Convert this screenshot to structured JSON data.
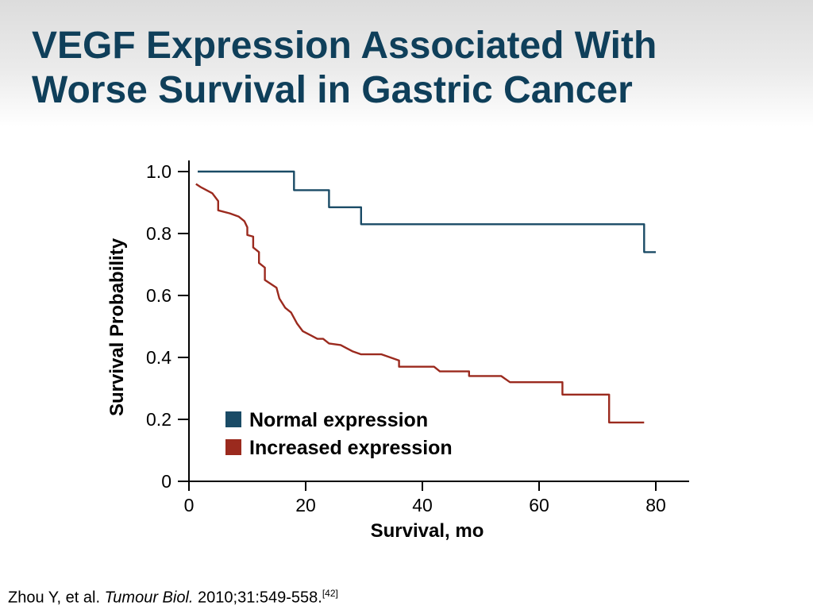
{
  "slide": {
    "title_line1": "VEGF Expression Associated With",
    "title_line2": "Worse Survival in Gastric Cancer"
  },
  "citation": {
    "authors": "Zhou Y, et al.",
    "journal": "Tumour Biol.",
    "details": "2010;31:549-558.",
    "ref": "[42]"
  },
  "colors": {
    "title": "#0f3f5a",
    "normal": "#1a4b66",
    "increased": "#9b2a1e"
  },
  "chart_data": {
    "type": "line",
    "step": true,
    "xlabel": "Survival, mo",
    "ylabel": "Survival Probability",
    "xlim": [
      0,
      85
    ],
    "ylim": [
      0,
      1.0
    ],
    "xticks": [
      0,
      20,
      40,
      60,
      80
    ],
    "yticks": [
      0,
      0.2,
      0.4,
      0.6,
      0.8,
      1.0
    ],
    "xtick_labels": [
      "0",
      "20",
      "40",
      "60",
      "80"
    ],
    "ytick_labels": [
      "0",
      "0.2",
      "0.4",
      "0.6",
      "0.8",
      "1.0"
    ],
    "grid": false,
    "legend_position": "lower-left",
    "series": [
      {
        "name": "Normal expression",
        "color": "#1a4b66",
        "points": [
          [
            1.5,
            1.0
          ],
          [
            18,
            1.0
          ],
          [
            18,
            0.94
          ],
          [
            24,
            0.94
          ],
          [
            24,
            0.885
          ],
          [
            29.5,
            0.885
          ],
          [
            29.5,
            0.83
          ],
          [
            78,
            0.83
          ],
          [
            78,
            0.74
          ],
          [
            80,
            0.74
          ]
        ]
      },
      {
        "name": "Increased expression",
        "color": "#9b2a1e",
        "points": [
          [
            1.2,
            0.96
          ],
          [
            2,
            0.95
          ],
          [
            3,
            0.94
          ],
          [
            4,
            0.93
          ],
          [
            5,
            0.905
          ],
          [
            5,
            0.875
          ],
          [
            7,
            0.865
          ],
          [
            8.5,
            0.855
          ],
          [
            9.5,
            0.84
          ],
          [
            10,
            0.82
          ],
          [
            10,
            0.795
          ],
          [
            11,
            0.79
          ],
          [
            11,
            0.755
          ],
          [
            12,
            0.74
          ],
          [
            12,
            0.705
          ],
          [
            13,
            0.69
          ],
          [
            13,
            0.65
          ],
          [
            15,
            0.625
          ],
          [
            15.5,
            0.59
          ],
          [
            16.5,
            0.56
          ],
          [
            17.5,
            0.545
          ],
          [
            18.5,
            0.51
          ],
          [
            19.5,
            0.485
          ],
          [
            21,
            0.47
          ],
          [
            22,
            0.46
          ],
          [
            23,
            0.46
          ],
          [
            24,
            0.445
          ],
          [
            26,
            0.44
          ],
          [
            27,
            0.43
          ],
          [
            28,
            0.42
          ],
          [
            29.5,
            0.41
          ],
          [
            33,
            0.41
          ],
          [
            34.5,
            0.4
          ],
          [
            36,
            0.39
          ],
          [
            36,
            0.37
          ],
          [
            42,
            0.37
          ],
          [
            43,
            0.355
          ],
          [
            48,
            0.355
          ],
          [
            48,
            0.34
          ],
          [
            53.5,
            0.34
          ],
          [
            55,
            0.32
          ],
          [
            64,
            0.32
          ],
          [
            64,
            0.28
          ],
          [
            72,
            0.28
          ],
          [
            72,
            0.19
          ],
          [
            78,
            0.19
          ]
        ]
      }
    ]
  }
}
